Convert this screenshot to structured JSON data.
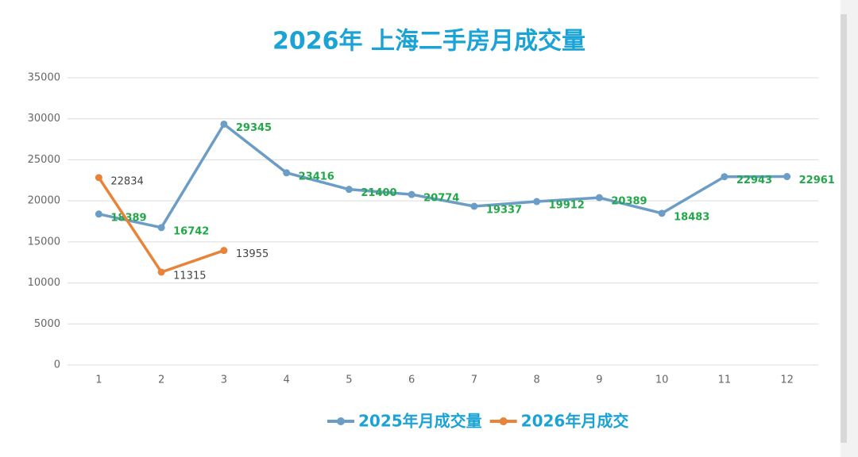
{
  "chart_data": {
    "type": "line",
    "title": "2026年 上海二手房月成交量",
    "categories": [
      "1",
      "2",
      "3",
      "4",
      "5",
      "6",
      "7",
      "8",
      "9",
      "10",
      "11",
      "12"
    ],
    "series": [
      {
        "name": "2025年月成交量",
        "color": "#6b9dc6",
        "label_color": "#22a84a",
        "values": [
          18389,
          16742,
          29345,
          23416,
          21400,
          20774,
          19337,
          19912,
          20389,
          18483,
          22943,
          22961
        ]
      },
      {
        "name": "2026年月成交",
        "color": "#e8833a",
        "label_color": "#444444",
        "values": [
          22834,
          11315,
          13955,
          null,
          null,
          null,
          null,
          null,
          null,
          null,
          null,
          null
        ]
      }
    ],
    "ylim": [
      0,
      35000
    ],
    "yticks": [
      0,
      5000,
      10000,
      15000,
      20000,
      25000,
      30000,
      35000
    ],
    "grid": true,
    "legend": "bottom"
  }
}
